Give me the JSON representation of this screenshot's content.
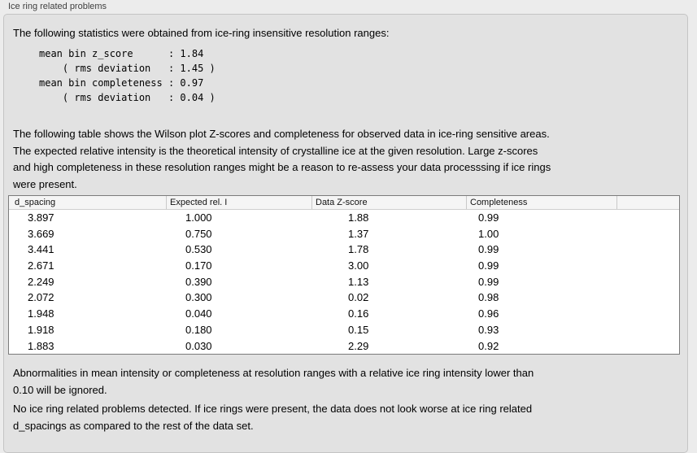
{
  "panel": {
    "title": "Ice ring related problems"
  },
  "intro_text": "The following statistics were obtained from ice-ring insensitive resolution ranges:",
  "stats_block": "mean bin z_score      : 1.84\n    ( rms deviation   : 1.45 )\nmean bin completeness : 0.97\n    ( rms deviation   : 0.04 )",
  "table_description": "The following table shows the Wilson plot Z-scores and completeness for observed data in ice-ring sensitive areas.\nThe expected relative intensity is the theoretical intensity of crystalline ice at the given resolution. Large z-scores\nand high completeness in these resolution ranges might be a reason to re-assess your data processsing if ice rings\nwere present.",
  "table": {
    "columns": [
      "d_spacing",
      "Expected rel. I",
      "Data Z-score",
      "Completeness",
      ""
    ],
    "rows": [
      [
        "3.897",
        "1.000",
        "1.88",
        "0.99"
      ],
      [
        "3.669",
        "0.750",
        "1.37",
        "1.00"
      ],
      [
        "3.441",
        "0.530",
        "1.78",
        "0.99"
      ],
      [
        "2.671",
        "0.170",
        "3.00",
        "0.99"
      ],
      [
        "2.249",
        "0.390",
        "1.13",
        "0.99"
      ],
      [
        "2.072",
        "0.300",
        "0.02",
        "0.98"
      ],
      [
        "1.948",
        "0.040",
        "0.16",
        "0.96"
      ],
      [
        "1.918",
        "0.180",
        "0.15",
        "0.93"
      ],
      [
        "1.883",
        "0.030",
        "2.29",
        "0.92"
      ]
    ]
  },
  "ignore_note": "Abnormalities in mean intensity or completeness at resolution ranges with a relative ice ring intensity lower than\n0.10 will be ignored.",
  "conclusion_note": "No ice ring related problems detected. If ice rings were present, the data does not look worse at ice ring related\nd_spacings as compared to the rest of the data set."
}
